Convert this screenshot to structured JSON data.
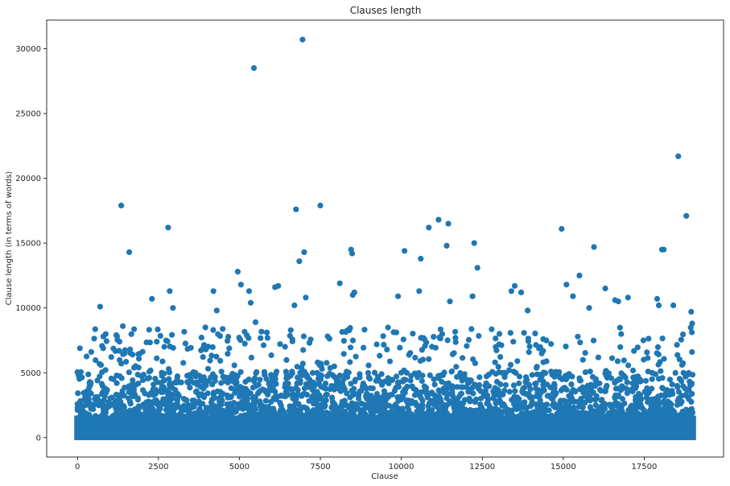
{
  "chart_data": {
    "type": "scatter",
    "title": "Clauses length",
    "xlabel": "Clause",
    "ylabel": "Clause length (in terms of words)",
    "xlim": [
      -950,
      19950
    ],
    "ylim": [
      -1500,
      32200
    ],
    "xticks": [
      0,
      2500,
      5000,
      7500,
      10000,
      12500,
      15000,
      17500
    ],
    "yticks": [
      0,
      5000,
      10000,
      15000,
      20000,
      25000,
      30000
    ],
    "xtick_labels": [
      "0",
      "2500",
      "5000",
      "7500",
      "10000",
      "12500",
      "15000",
      "17500"
    ],
    "ytick_labels": [
      "0",
      "5000",
      "10000",
      "15000",
      "20000",
      "25000",
      "30000"
    ],
    "marker_color": "#1f77b4",
    "grid": false,
    "n_points_approx": 19000,
    "points": [
      {
        "x": 0,
        "y": 5050
      },
      {
        "x": 700,
        "y": 10100
      },
      {
        "x": 800,
        "y": 7800
      },
      {
        "x": 1200,
        "y": 7900
      },
      {
        "x": 1300,
        "y": 7400
      },
      {
        "x": 1350,
        "y": 17900
      },
      {
        "x": 1400,
        "y": 8600
      },
      {
        "x": 1600,
        "y": 14300
      },
      {
        "x": 1700,
        "y": 6400
      },
      {
        "x": 2300,
        "y": 10700
      },
      {
        "x": 2450,
        "y": 7400
      },
      {
        "x": 2800,
        "y": 16200
      },
      {
        "x": 2850,
        "y": 11300
      },
      {
        "x": 2950,
        "y": 10000
      },
      {
        "x": 3950,
        "y": 8500
      },
      {
        "x": 4200,
        "y": 11300
      },
      {
        "x": 4300,
        "y": 9800
      },
      {
        "x": 4950,
        "y": 12800
      },
      {
        "x": 5050,
        "y": 11800
      },
      {
        "x": 5300,
        "y": 11300
      },
      {
        "x": 5350,
        "y": 10400
      },
      {
        "x": 5450,
        "y": 28500
      },
      {
        "x": 5500,
        "y": 8900
      },
      {
        "x": 6100,
        "y": 11600
      },
      {
        "x": 6200,
        "y": 11700
      },
      {
        "x": 6700,
        "y": 10200
      },
      {
        "x": 6750,
        "y": 17600
      },
      {
        "x": 6850,
        "y": 13600
      },
      {
        "x": 6950,
        "y": 30700
      },
      {
        "x": 7000,
        "y": 14300
      },
      {
        "x": 7050,
        "y": 10800
      },
      {
        "x": 7500,
        "y": 17900
      },
      {
        "x": 8100,
        "y": 11900
      },
      {
        "x": 8450,
        "y": 14500
      },
      {
        "x": 8480,
        "y": 14200
      },
      {
        "x": 8500,
        "y": 11000
      },
      {
        "x": 8550,
        "y": 11200
      },
      {
        "x": 9900,
        "y": 10900
      },
      {
        "x": 10100,
        "y": 14400
      },
      {
        "x": 10550,
        "y": 11300
      },
      {
        "x": 10600,
        "y": 13800
      },
      {
        "x": 10850,
        "y": 16200
      },
      {
        "x": 11150,
        "y": 16800
      },
      {
        "x": 11400,
        "y": 14800
      },
      {
        "x": 11450,
        "y": 16500
      },
      {
        "x": 11500,
        "y": 10500
      },
      {
        "x": 12200,
        "y": 10900
      },
      {
        "x": 12250,
        "y": 15000
      },
      {
        "x": 12350,
        "y": 13100
      },
      {
        "x": 13400,
        "y": 11300
      },
      {
        "x": 13500,
        "y": 11700
      },
      {
        "x": 13700,
        "y": 11200
      },
      {
        "x": 13900,
        "y": 9800
      },
      {
        "x": 14950,
        "y": 16100
      },
      {
        "x": 15100,
        "y": 11800
      },
      {
        "x": 15300,
        "y": 10900
      },
      {
        "x": 15500,
        "y": 12500
      },
      {
        "x": 15800,
        "y": 10000
      },
      {
        "x": 15950,
        "y": 14700
      },
      {
        "x": 16300,
        "y": 11500
      },
      {
        "x": 16600,
        "y": 10600
      },
      {
        "x": 16700,
        "y": 10500
      },
      {
        "x": 17000,
        "y": 10800
      },
      {
        "x": 17900,
        "y": 10700
      },
      {
        "x": 17950,
        "y": 10200
      },
      {
        "x": 18050,
        "y": 14500
      },
      {
        "x": 18100,
        "y": 14500
      },
      {
        "x": 18400,
        "y": 10200
      },
      {
        "x": 18550,
        "y": 21700
      },
      {
        "x": 18800,
        "y": 17100
      },
      {
        "x": 18950,
        "y": 9700
      },
      {
        "x": 18980,
        "y": 8800
      }
    ]
  }
}
